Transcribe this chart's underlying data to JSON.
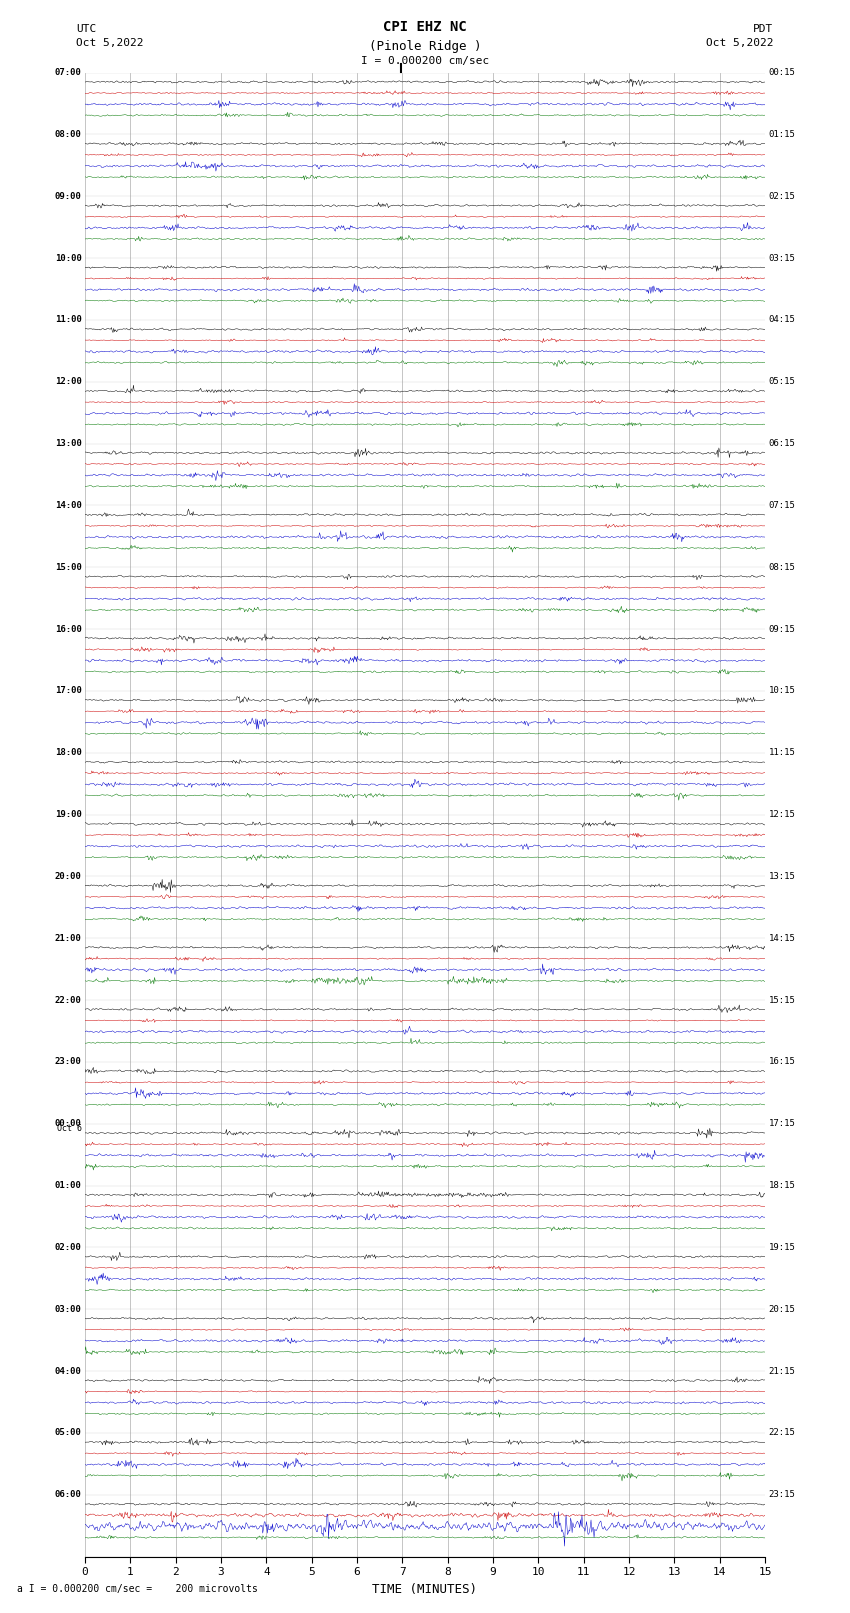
{
  "title_line1": "CPI EHZ NC",
  "title_line2": "(Pinole Ridge )",
  "scale_label": "I = 0.000200 cm/sec",
  "bottom_label": "a I = 0.000200 cm/sec =    200 microvolts",
  "xlabel": "TIME (MINUTES)",
  "xmin": 0,
  "xmax": 15,
  "background_color": "#ffffff",
  "trace_colors": [
    "#000000",
    "#cc0000",
    "#0000cc",
    "#007700"
  ],
  "grid_color": "#888888",
  "utc_labels": [
    "07:00",
    "08:00",
    "09:00",
    "10:00",
    "11:00",
    "12:00",
    "13:00",
    "14:00",
    "15:00",
    "16:00",
    "17:00",
    "18:00",
    "19:00",
    "20:00",
    "21:00",
    "22:00",
    "23:00",
    "Oct 6\n00:00",
    "01:00",
    "02:00",
    "03:00",
    "04:00",
    "05:00",
    "06:00"
  ],
  "pdt_labels": [
    "00:15",
    "01:15",
    "02:15",
    "03:15",
    "04:15",
    "05:15",
    "06:15",
    "07:15",
    "08:15",
    "09:15",
    "10:15",
    "11:15",
    "12:15",
    "13:15",
    "14:15",
    "15:15",
    "16:15",
    "17:15",
    "18:15",
    "19:15",
    "20:15",
    "21:15",
    "22:15",
    "23:15"
  ],
  "num_hour_groups": 24,
  "traces_per_group": 4,
  "amplitude_base": 0.012,
  "noise_seed": 42
}
